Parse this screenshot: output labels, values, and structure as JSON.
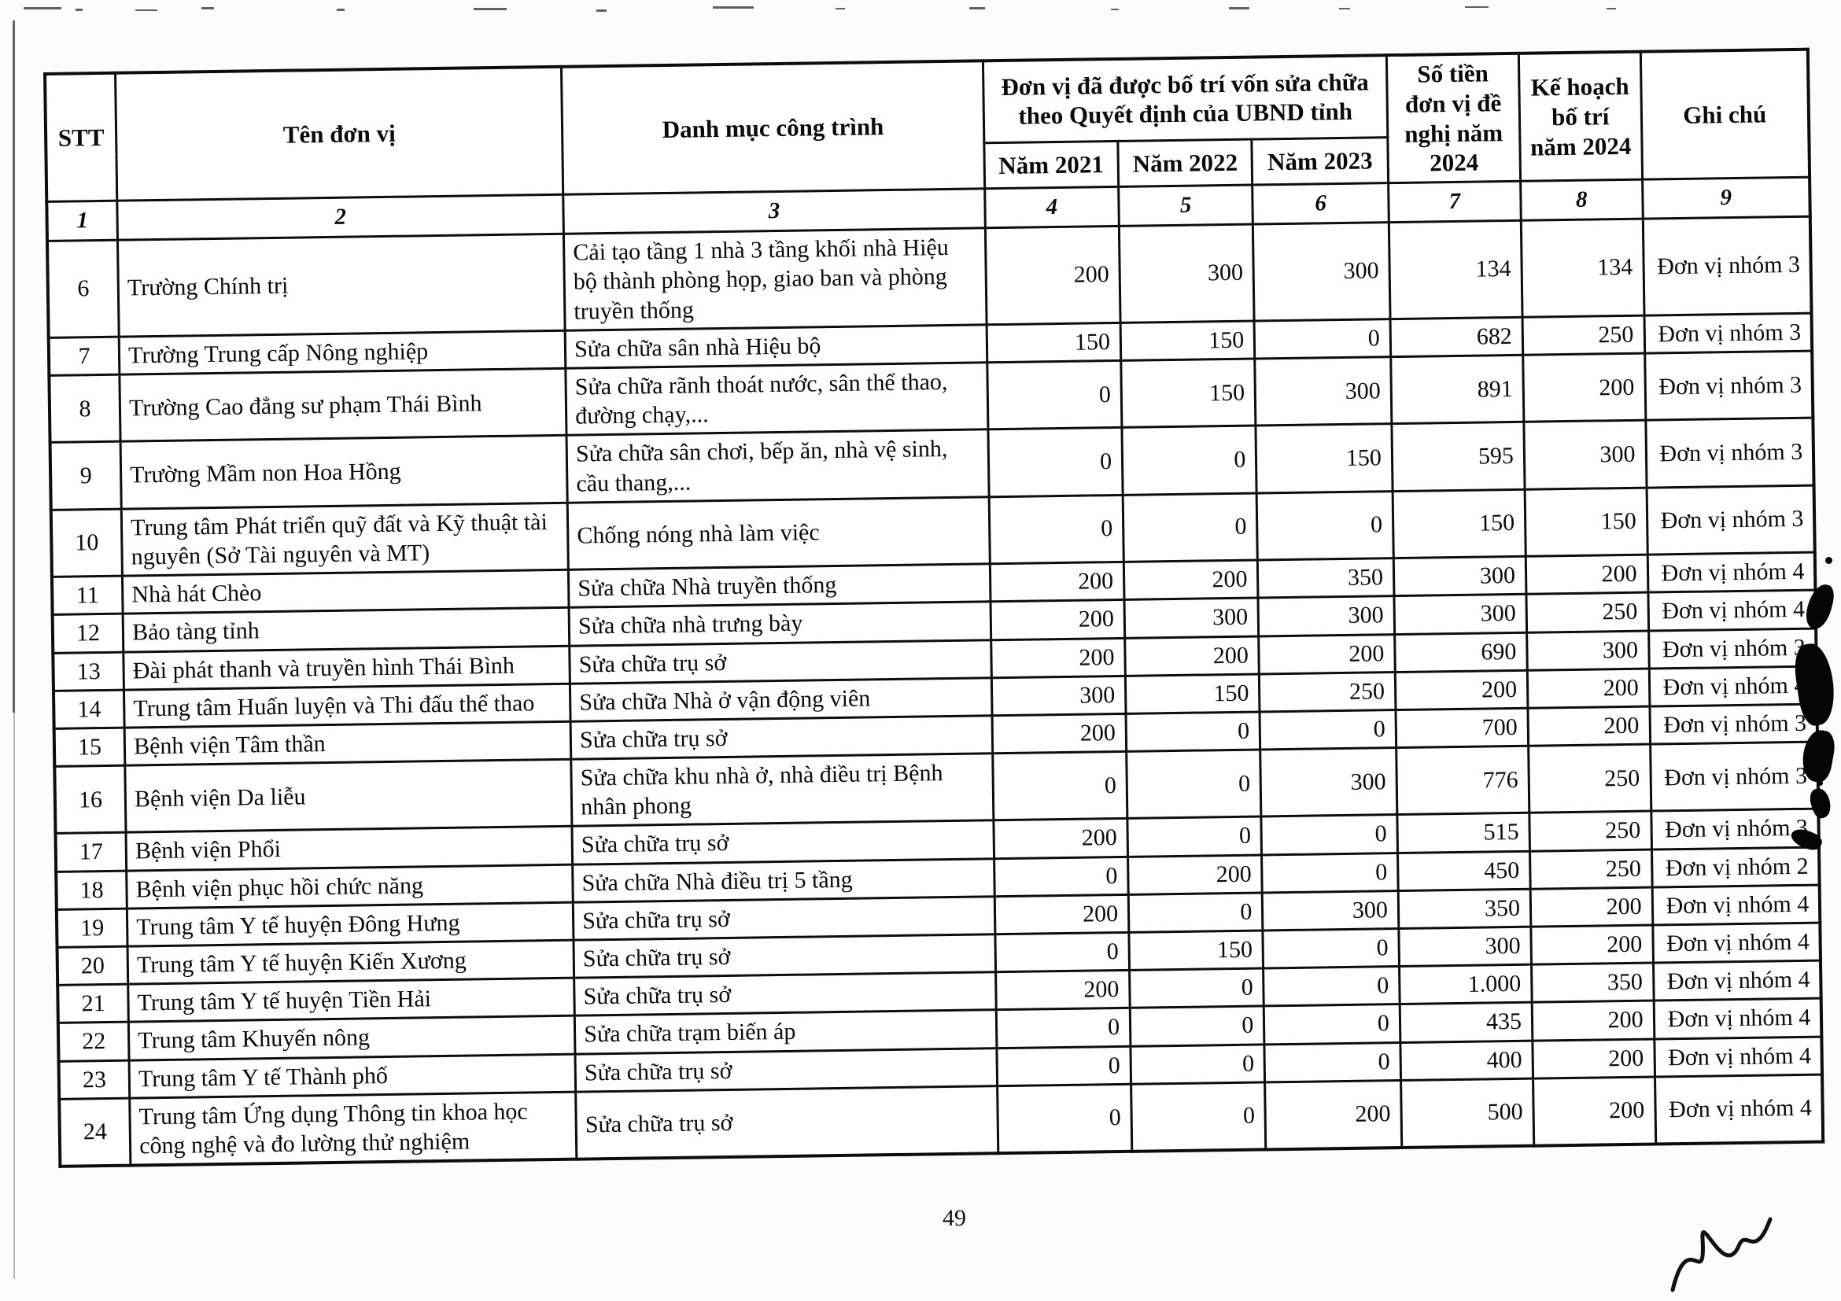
{
  "page": {
    "number": "49"
  },
  "table": {
    "headers": {
      "stt": "STT",
      "ten_don_vi": "Tên đơn vị",
      "danh_muc": "Danh mục công trình",
      "group_von": "Đơn vị đã được bố trí vốn sửa chữa theo Quyết định của UBND tỉnh",
      "nam_2021": "Năm 2021",
      "nam_2022": "Năm 2022",
      "nam_2023": "Năm 2023",
      "so_tien": "Số tiền đơn vị đề nghị năm 2024",
      "ke_hoach": "Kế hoạch bố trí năm 2024",
      "ghi_chu": "Ghi chú"
    },
    "index_row": [
      "1",
      "2",
      "3",
      "4",
      "5",
      "6",
      "7",
      "8",
      "9"
    ],
    "rows": [
      {
        "stt": "6",
        "name": "Trường Chính trị",
        "project": "Cải tạo tầng 1 nhà 3 tầng khối nhà Hiệu bộ thành phòng họp, giao ban và phòng truyền thống",
        "y2021": "200",
        "y2022": "300",
        "y2023": "300",
        "requested": "134",
        "plan": "134",
        "note": "Đơn vị nhóm 3"
      },
      {
        "stt": "7",
        "name": "Trường Trung cấp Nông nghiệp",
        "project": "Sửa chữa sân nhà Hiệu bộ",
        "y2021": "150",
        "y2022": "150",
        "y2023": "0",
        "requested": "682",
        "plan": "250",
        "note": "Đơn vị nhóm 3"
      },
      {
        "stt": "8",
        "name": "Trường Cao đẳng sư phạm Thái Bình",
        "project": "Sửa chữa rãnh thoát nước, sân thể thao, đường chạy,...",
        "y2021": "0",
        "y2022": "150",
        "y2023": "300",
        "requested": "891",
        "plan": "200",
        "note": "Đơn vị nhóm 3"
      },
      {
        "stt": "9",
        "name": "Trường Mầm non Hoa Hồng",
        "project": "Sửa chữa sân chơi, bếp ăn, nhà vệ sinh, cầu thang,...",
        "y2021": "0",
        "y2022": "0",
        "y2023": "150",
        "requested": "595",
        "plan": "300",
        "note": "Đơn vị nhóm 3"
      },
      {
        "stt": "10",
        "name": "Trung tâm Phát triển quỹ đất và Kỹ thuật tài nguyên (Sở Tài nguyên và MT)",
        "project": "Chống nóng nhà làm việc",
        "y2021": "0",
        "y2022": "0",
        "y2023": "0",
        "requested": "150",
        "plan": "150",
        "note": "Đơn vị nhóm 3"
      },
      {
        "stt": "11",
        "name": "Nhà hát Chèo",
        "project": "Sửa chữa Nhà truyền thống",
        "y2021": "200",
        "y2022": "200",
        "y2023": "350",
        "requested": "300",
        "plan": "200",
        "note": "Đơn vị nhóm 4"
      },
      {
        "stt": "12",
        "name": "Bảo tàng tỉnh",
        "project": "Sửa chữa nhà trưng bày",
        "y2021": "200",
        "y2022": "300",
        "y2023": "300",
        "requested": "300",
        "plan": "250",
        "note": "Đơn vị nhóm 4"
      },
      {
        "stt": "13",
        "name": "Đài phát thanh và truyền hình Thái Bình",
        "project": "Sửa chữa trụ sở",
        "y2021": "200",
        "y2022": "200",
        "y2023": "200",
        "requested": "690",
        "plan": "300",
        "note": "Đơn vị nhóm 3"
      },
      {
        "stt": "14",
        "name": "Trung tâm Huấn luyện và Thi đấu thể thao",
        "project": "Sửa chữa Nhà ở vận động viên",
        "y2021": "300",
        "y2022": "150",
        "y2023": "250",
        "requested": "200",
        "plan": "200",
        "note": "Đơn vị nhóm 4"
      },
      {
        "stt": "15",
        "name": "Bệnh viện Tâm thần",
        "project": "Sửa chữa trụ sở",
        "y2021": "200",
        "y2022": "0",
        "y2023": "0",
        "requested": "700",
        "plan": "200",
        "note": "Đơn vị nhóm 3"
      },
      {
        "stt": "16",
        "name": "Bệnh viện Da liễu",
        "project": "Sửa chữa khu nhà ở, nhà điều trị  Bệnh nhân phong",
        "y2021": "0",
        "y2022": "0",
        "y2023": "300",
        "requested": "776",
        "plan": "250",
        "note": "Đơn vị nhóm 3"
      },
      {
        "stt": "17",
        "name": "Bệnh viện Phổi",
        "project": "Sửa chữa trụ sở",
        "y2021": "200",
        "y2022": "0",
        "y2023": "0",
        "requested": "515",
        "plan": "250",
        "note": "Đơn vị nhóm 3"
      },
      {
        "stt": "18",
        "name": "Bệnh viện  phục hồi chức năng",
        "project": "Sửa chữa Nhà điều trị 5 tầng",
        "y2021": "0",
        "y2022": "200",
        "y2023": "0",
        "requested": "450",
        "plan": "250",
        "note": "Đơn vị nhóm 2"
      },
      {
        "stt": "19",
        "name": "Trung tâm Y tế huyện Đông Hưng",
        "project": "Sửa chữa trụ sở",
        "y2021": "200",
        "y2022": "0",
        "y2023": "300",
        "requested": "350",
        "plan": "200",
        "note": "Đơn vị nhóm 4"
      },
      {
        "stt": "20",
        "name": "Trung tâm Y tế huyện Kiến Xương",
        "project": "Sửa chữa trụ sở",
        "y2021": "0",
        "y2022": "150",
        "y2023": "0",
        "requested": "300",
        "plan": "200",
        "note": "Đơn vị nhóm 4"
      },
      {
        "stt": "21",
        "name": "Trung tâm Y tế huyện Tiền Hải",
        "project": "Sửa chữa trụ sở",
        "y2021": "200",
        "y2022": "0",
        "y2023": "0",
        "requested": "1.000",
        "plan": "350",
        "note": "Đơn vị nhóm 4"
      },
      {
        "stt": "22",
        "name": "Trung tâm Khuyến nông",
        "project": "Sửa chữa trạm biến áp",
        "y2021": "0",
        "y2022": "0",
        "y2023": "0",
        "requested": "435",
        "plan": "200",
        "note": "Đơn vị nhóm 4"
      },
      {
        "stt": "23",
        "name": "Trung tâm Y tế Thành phố",
        "project": "Sửa chữa trụ sở",
        "y2021": "0",
        "y2022": "0",
        "y2023": "0",
        "requested": "400",
        "plan": "200",
        "note": "Đơn vị nhóm 4"
      },
      {
        "stt": "24",
        "name": "Trung tâm Ứng dụng Thông tin khoa học công nghệ và đo lường thử nghiệm",
        "project": "Sửa chữa trụ sở",
        "y2021": "0",
        "y2022": "0",
        "y2023": "200",
        "requested": "500",
        "plan": "200",
        "note": "Đơn vị nhóm 4"
      }
    ]
  }
}
